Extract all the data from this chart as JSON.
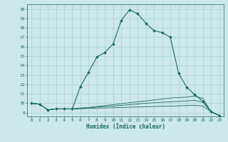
{
  "xlabel": "Humidex (Indice chaleur)",
  "bg_color": "#cce8e8",
  "grid_color": "#aad0d0",
  "line_color": "#1a6b5a",
  "x_ticks": [
    0,
    1,
    2,
    3,
    4,
    5,
    6,
    7,
    8,
    9,
    10,
    11,
    12,
    13,
    14,
    15,
    16,
    17,
    18,
    19,
    20,
    21,
    22,
    23
  ],
  "y_ticks": [
    9,
    10,
    11,
    12,
    13,
    14,
    15,
    16,
    17,
    18,
    19,
    20
  ],
  "ylim": [
    8.6,
    20.5
  ],
  "xlim": [
    -0.5,
    23.5
  ],
  "main_y": [
    10.0,
    9.9,
    9.3,
    9.4,
    9.4,
    9.4,
    11.8,
    13.3,
    14.9,
    15.4,
    16.3,
    18.8,
    19.9,
    19.5,
    18.5,
    17.7,
    17.5,
    17.0,
    13.2,
    11.7,
    10.9,
    10.2,
    9.1,
    8.7
  ],
  "line1_y": [
    10.0,
    9.9,
    9.3,
    9.4,
    9.4,
    9.4,
    9.42,
    9.45,
    9.48,
    9.5,
    9.52,
    9.55,
    9.58,
    9.6,
    9.63,
    9.65,
    9.68,
    9.7,
    9.72,
    9.75,
    9.78,
    9.7,
    9.1,
    8.7
  ],
  "line2_y": [
    10.0,
    9.9,
    9.3,
    9.4,
    9.4,
    9.4,
    9.45,
    9.5,
    9.6,
    9.65,
    9.7,
    9.78,
    9.85,
    9.92,
    10.0,
    10.05,
    10.1,
    10.15,
    10.2,
    10.25,
    10.3,
    10.1,
    9.1,
    8.7
  ],
  "line3_y": [
    10.0,
    9.9,
    9.3,
    9.4,
    9.4,
    9.4,
    9.5,
    9.55,
    9.65,
    9.75,
    9.85,
    9.95,
    10.05,
    10.15,
    10.25,
    10.35,
    10.45,
    10.55,
    10.6,
    10.65,
    10.75,
    10.5,
    9.1,
    8.7
  ]
}
